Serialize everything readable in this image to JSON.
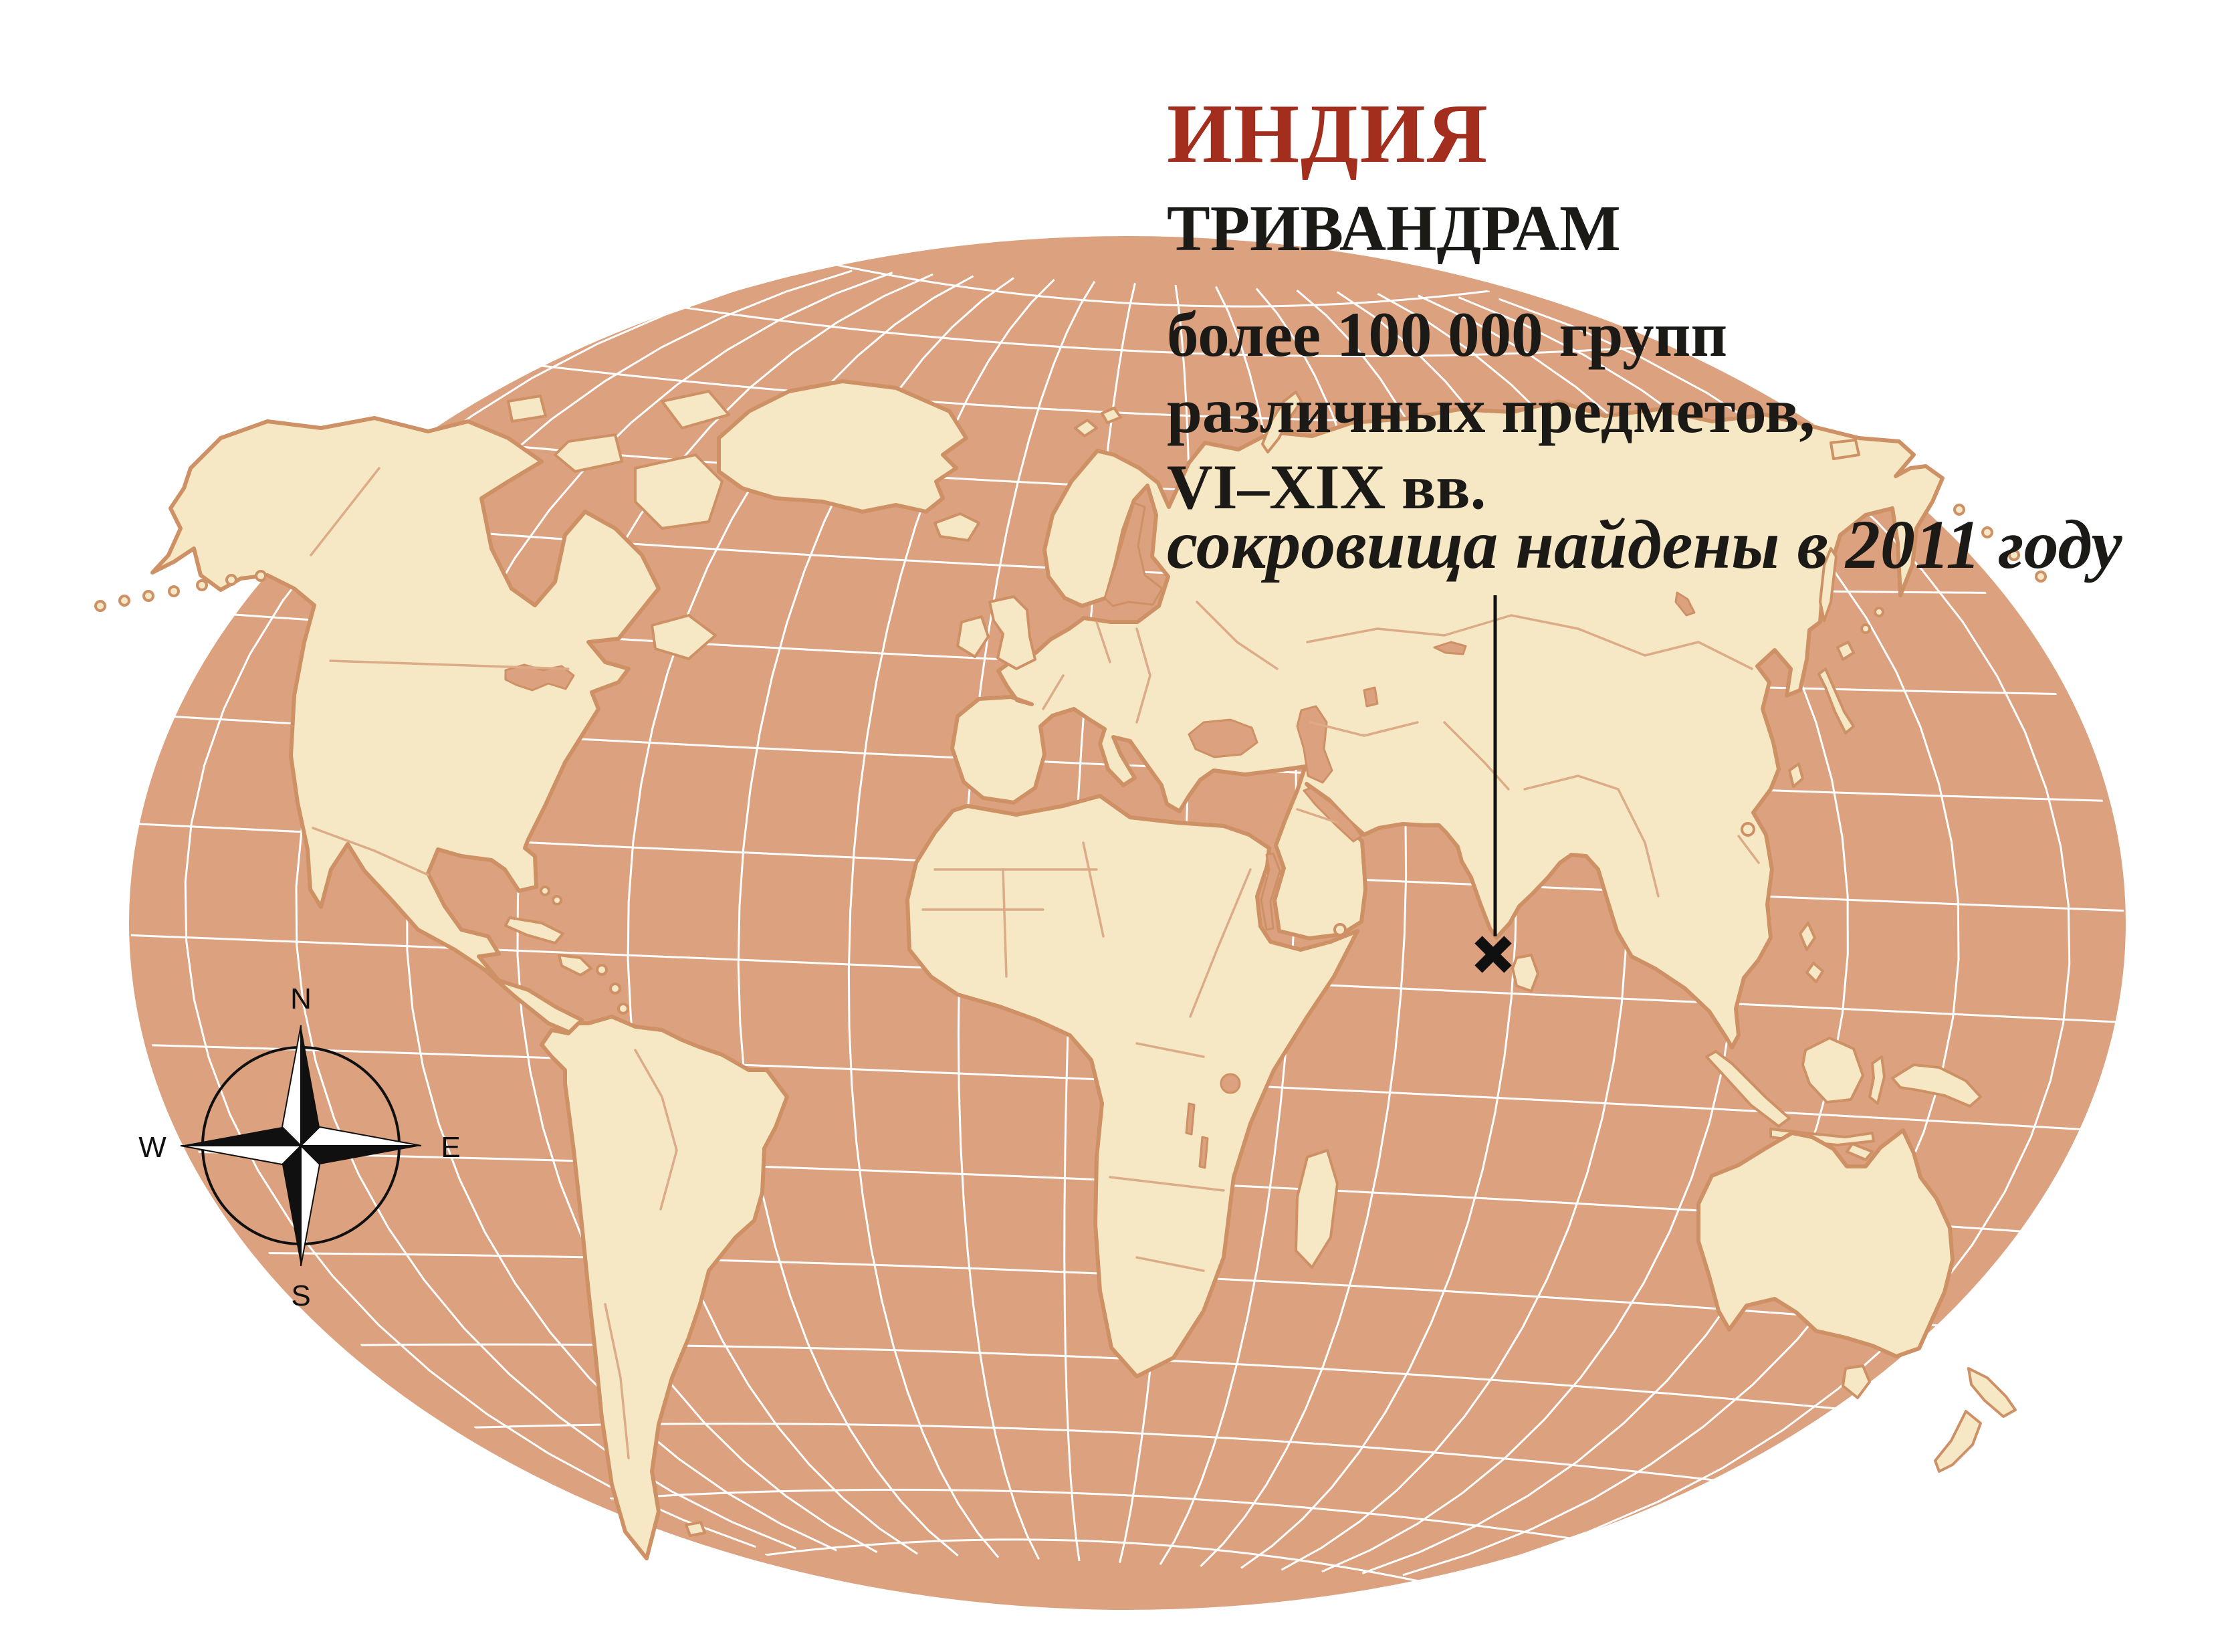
{
  "header": {
    "country": "ИНДИЯ",
    "city": "ТРИВАНДРАМ",
    "description_lines": [
      "более 100 000 групп",
      "различных предметов,",
      "VI–XIX вв."
    ],
    "found_note": "сокровища найдены в 2011 году"
  },
  "compass": {
    "north": "N",
    "east": "E",
    "south": "S",
    "west": "W"
  },
  "marker": {
    "shape": "x-cross",
    "location": "Trivandrum, southern India"
  },
  "colors": {
    "ocean": "#dca17e",
    "land": "#f6e7c5",
    "coastline": "#ce9165",
    "country_border": "#dcab87",
    "graticule": "#ffffff",
    "accent_red": "#a42e1d",
    "text_black": "#1b1a17",
    "background": "#ffffff"
  }
}
